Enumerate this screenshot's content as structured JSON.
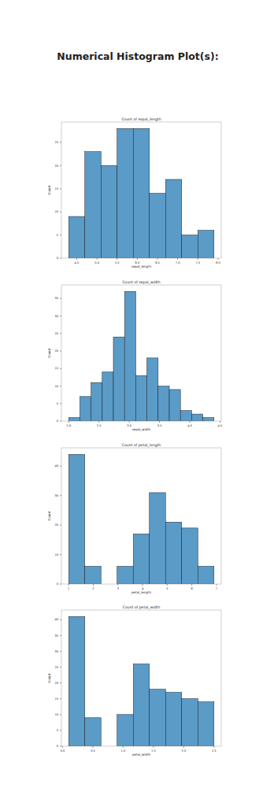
{
  "title": "Numerical Histogram Plot(s):",
  "chart_data": [
    {
      "type": "histogram",
      "title": "Count of sepal_length",
      "x_label": "sepal_length",
      "y_label": "Count",
      "color": "#5a9bc8",
      "bins": [
        4.3,
        4.7,
        5.1,
        5.5,
        5.9,
        6.3,
        6.7,
        7.1,
        7.5,
        7.9
      ],
      "values": [
        9,
        23,
        20,
        28,
        28,
        14,
        17,
        5,
        6
      ],
      "xlim": [
        4.12,
        8.08
      ],
      "ylim": [
        0,
        29.4
      ],
      "xticks": [
        {
          "value": 4.5,
          "label": "4.5"
        },
        {
          "value": 5,
          "label": "5.0"
        },
        {
          "value": 5.5,
          "label": "5.5"
        },
        {
          "value": 6,
          "label": "6.0"
        },
        {
          "value": 6.5,
          "label": "6.5"
        },
        {
          "value": 7,
          "label": "7.0"
        },
        {
          "value": 7.5,
          "label": "7.5"
        },
        {
          "value": 8,
          "label": "8.0"
        }
      ],
      "yticks": [
        0,
        5,
        10,
        15,
        20,
        25
      ]
    },
    {
      "type": "histogram",
      "title": "Count of sepal_width",
      "x_label": "sepal_width",
      "y_label": "Count",
      "color": "#5a9bc8",
      "bins": [
        2.0,
        2.185,
        2.369,
        2.554,
        2.738,
        2.923,
        3.108,
        3.292,
        3.477,
        3.662,
        3.846,
        4.031,
        4.215,
        4.4
      ],
      "values": [
        1,
        7,
        11,
        14,
        24,
        37,
        13,
        18,
        10,
        9,
        3,
        2,
        1
      ],
      "xlim": [
        1.88,
        4.52
      ],
      "ylim": [
        0,
        38.85
      ],
      "xticks": [
        {
          "value": 2,
          "label": "2.0"
        },
        {
          "value": 2.5,
          "label": "2.5"
        },
        {
          "value": 3,
          "label": "3.0"
        },
        {
          "value": 3.5,
          "label": "3.5"
        },
        {
          "value": 4,
          "label": "4.0"
        },
        {
          "value": 4.5,
          "label": "4.5"
        }
      ],
      "yticks": [
        0,
        5,
        10,
        15,
        20,
        25,
        30,
        35
      ]
    },
    {
      "type": "histogram",
      "title": "Count of petal_length",
      "x_label": "petal_length",
      "y_label": "Count",
      "color": "#5a9bc8",
      "bins": [
        1.0,
        1.656,
        2.311,
        2.967,
        3.622,
        4.278,
        4.933,
        5.589,
        6.244,
        6.9
      ],
      "values": [
        44,
        6,
        0,
        6,
        17,
        31,
        21,
        19,
        6
      ],
      "xlim": [
        0.705,
        7.195
      ],
      "ylim": [
        0,
        46.2
      ],
      "xticks": [
        1,
        2,
        3,
        4,
        5,
        6,
        7
      ],
      "yticks": [
        0,
        10,
        20,
        30,
        40
      ]
    },
    {
      "type": "histogram",
      "title": "Count of petal_width",
      "x_label": "petal_width",
      "y_label": "Count",
      "color": "#5a9bc8",
      "bins": [
        0.1,
        0.367,
        0.633,
        0.9,
        1.167,
        1.433,
        1.7,
        1.967,
        2.233,
        2.5
      ],
      "values": [
        41,
        9,
        0,
        10,
        26,
        18,
        17,
        15,
        14
      ],
      "xlim": [
        -0.02,
        2.62
      ],
      "ylim": [
        0,
        43.05
      ],
      "xticks": [
        {
          "value": 0,
          "label": "0.0"
        },
        {
          "value": 0.5,
          "label": "0.5"
        },
        {
          "value": 1,
          "label": "1.0"
        },
        {
          "value": 1.5,
          "label": "1.5"
        },
        {
          "value": 2,
          "label": "2.0"
        },
        {
          "value": 2.5,
          "label": "2.5"
        }
      ],
      "yticks": [
        0,
        5,
        10,
        15,
        20,
        25,
        30,
        35,
        40
      ]
    }
  ]
}
